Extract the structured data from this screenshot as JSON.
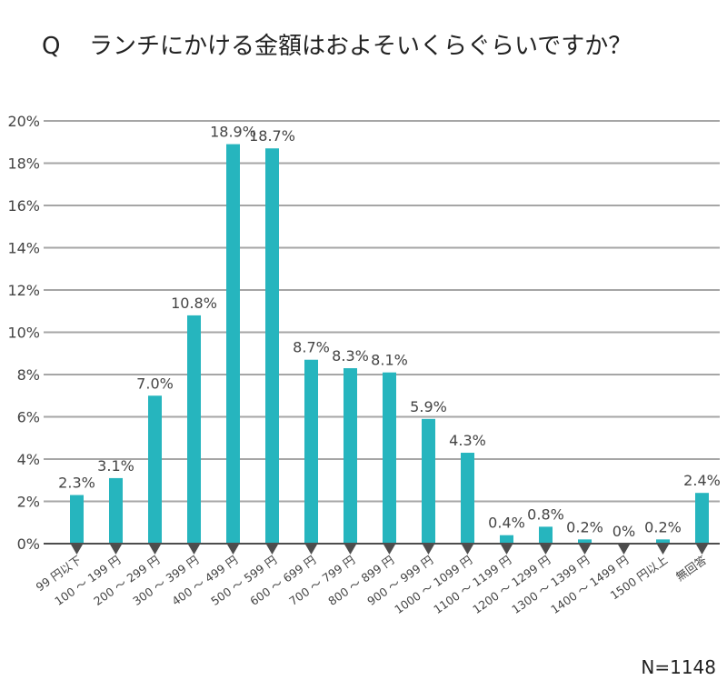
{
  "title": {
    "prefix": "Q",
    "text": "ランチにかける金額はおよそいくらぐらいですか？"
  },
  "footnote": "N=1148",
  "colors": {
    "bar": "#26b5be",
    "grid": "#a6a6a6",
    "axis": "#4d4d4d",
    "marker": "#4d4d4d",
    "text": "#444444"
  },
  "chart_data": {
    "type": "bar",
    "title": "Q ランチにかける金額はおよそいくらぐらいですか？",
    "xlabel": "",
    "ylabel": "",
    "ylim": [
      0,
      20
    ],
    "yticks": [
      0,
      2,
      4,
      6,
      8,
      10,
      12,
      14,
      16,
      18,
      20
    ],
    "ytick_labels": [
      "0%",
      "2%",
      "4%",
      "6%",
      "8%",
      "10%",
      "12%",
      "14%",
      "16%",
      "18%",
      "20%"
    ],
    "grid": true,
    "legend": "none",
    "categories": [
      "99 円以下",
      "100 ～ 199 円",
      "200 ～ 299 円",
      "300 ～ 399 円",
      "400 ～ 499 円",
      "500 ～ 599 円",
      "600 ～ 699 円",
      "700 ～ 799 円",
      "800 ～ 899 円",
      "900 ～ 999 円",
      "1000 ～ 1099 円",
      "1100 ～ 1199 円",
      "1200 ～ 1299 円",
      "1300 ～ 1399 円",
      "1400 ～ 1499 円",
      "1500 円以上",
      "無回答"
    ],
    "values": [
      2.3,
      3.1,
      7.0,
      10.8,
      18.9,
      18.7,
      8.7,
      8.3,
      8.1,
      5.9,
      4.3,
      0.4,
      0.8,
      0.2,
      0,
      0.2,
      2.4
    ],
    "value_labels": [
      "2.3%",
      "3.1%",
      "7.0%",
      "10.8%",
      "18.9%",
      "18.7%",
      "8.7%",
      "8.3%",
      "8.1%",
      "5.9%",
      "4.3%",
      "0.4%",
      "0.8%",
      "0.2%",
      "0%",
      "0.2%",
      "2.4%"
    ],
    "annotation": "N=1148"
  }
}
